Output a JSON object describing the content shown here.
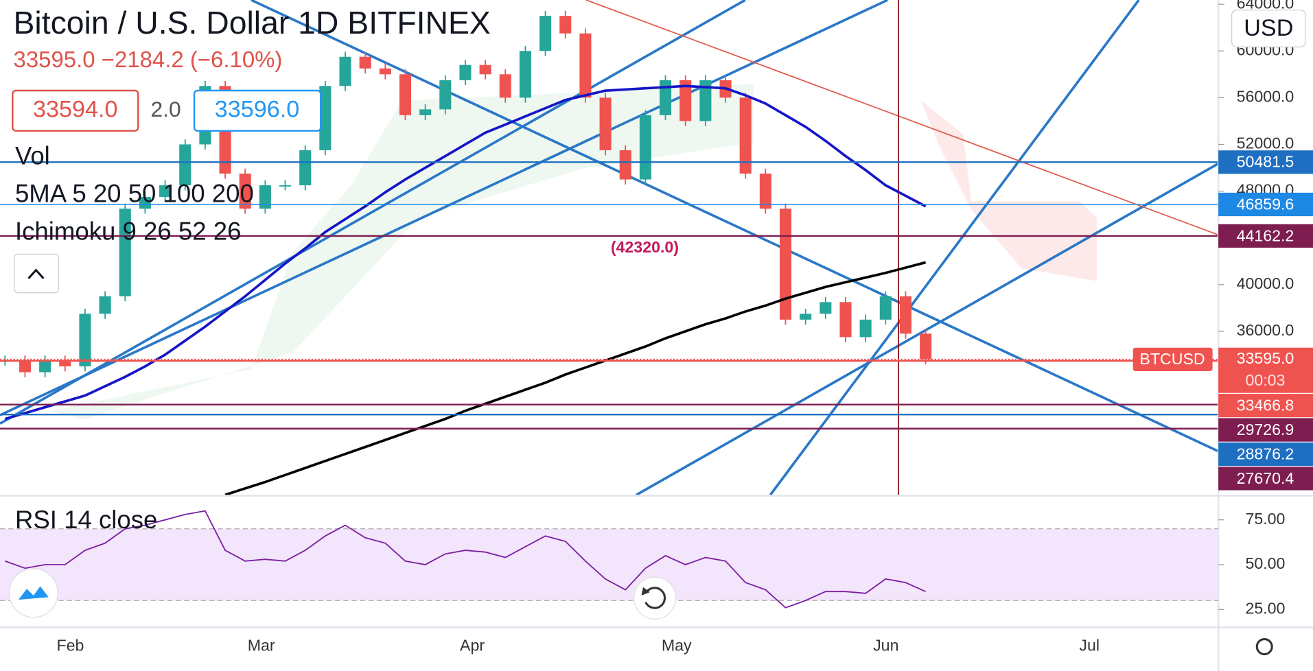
{
  "header": {
    "title": "Bitcoin / U.S. Dollar  1D  BITFINEX",
    "quote": "33595.0 −2184.2 (−6.10%)",
    "bid": "33594.0",
    "spread": "2.0",
    "ask": "33596.0",
    "currency": "USD"
  },
  "indicators": {
    "volume": "Vol",
    "ma": "5MA 5 20 50 100 200",
    "ichimoku": "Ichimoku 9 26 52 26",
    "rsi": "RSI 14 close"
  },
  "annotation": "(42320.0)",
  "chart_data": {
    "type": "candlestick",
    "x_labels": [
      "Feb",
      "Mar",
      "Apr",
      "May",
      "Jun",
      "Jul"
    ],
    "closes": [
      33500,
      32500,
      33500,
      33000,
      37500,
      39000,
      46500,
      47500,
      48500,
      52000,
      57000,
      49500,
      46500,
      48500,
      48500,
      51500,
      57000,
      59500,
      58500,
      58000,
      54500,
      55000,
      57500,
      58800,
      58000,
      56000,
      60000,
      63000,
      61500,
      56000,
      51500,
      49000,
      54500,
      57500,
      54000,
      57500,
      56000,
      49500,
      46500,
      37000,
      37500,
      38500,
      35500,
      37000,
      39000,
      35800,
      33595
    ],
    "up_color": "#26a69a",
    "down_color": "#ef5350",
    "ma50": {
      "color": "#1515c8",
      "values": [
        28500,
        29000,
        29500,
        30000,
        30500,
        31300,
        32100,
        33000,
        34000,
        35200,
        36400,
        37700,
        39000,
        40400,
        41800,
        43100,
        44500,
        45600,
        46700,
        47900,
        49000,
        50000,
        51000,
        52000,
        53000,
        53700,
        54400,
        55100,
        55800,
        56200,
        56600,
        56700,
        56800,
        56900,
        57000,
        56900,
        56800,
        56200,
        55500,
        54500,
        53500,
        52300,
        51000,
        49800,
        48500,
        47600,
        46700
      ]
    },
    "ma200": {
      "color": "#000000",
      "values": [
        null,
        null,
        null,
        null,
        null,
        null,
        null,
        null,
        null,
        null,
        null,
        22000,
        22550,
        23100,
        23700,
        24300,
        24900,
        25500,
        26100,
        26700,
        27300,
        27900,
        28500,
        29200,
        29800,
        30400,
        31000,
        31600,
        32300,
        32900,
        33500,
        34100,
        34700,
        35400,
        36000,
        36600,
        37100,
        37700,
        38200,
        38800,
        39300,
        39800,
        40200,
        40600,
        41000,
        41450,
        41900
      ]
    },
    "ylim": [
      22000,
      64360
    ],
    "yticks": [
      {
        "value": 36000,
        "label": "36000.0"
      },
      {
        "value": 40000,
        "label": "40000.0"
      },
      {
        "value": 44000,
        "label": "44000.0"
      },
      {
        "value": 48000,
        "label": "48000.0"
      },
      {
        "value": 52000,
        "label": "52000.0"
      },
      {
        "value": 56000,
        "label": "56000.0"
      },
      {
        "value": 60000,
        "label": "60000.0"
      },
      {
        "value": 64000,
        "label": "64000.0"
      }
    ],
    "last_price": {
      "symbol": "BTCUSD",
      "value": 33595,
      "label": "33595.0",
      "countdown": "00:03",
      "color": "#ef5350"
    },
    "levels": [
      {
        "value": 50481.5,
        "label": "50481.5",
        "color": "#1e6fc2"
      },
      {
        "value": 46859.6,
        "label": "46859.6",
        "color": "#1e88e5"
      },
      {
        "value": 44162.2,
        "label": "44162.2",
        "color": "#7e1d50"
      },
      {
        "value": 33466.8,
        "label": "33466.8",
        "color": "#ef5350"
      },
      {
        "value": 29726.9,
        "label": "29726.9",
        "color": "#7e1d50"
      },
      {
        "value": 28876.2,
        "label": "28876.2",
        "color": "#1e6fc2"
      },
      {
        "value": 27670.4,
        "label": "27670.4",
        "color": "#7e1d50"
      }
    ],
    "rsi": {
      "color": "#7b1fa2",
      "values": [
        52,
        48,
        50,
        50,
        58,
        62,
        70,
        72,
        75,
        78,
        80,
        58,
        52,
        53,
        52,
        58,
        66,
        72,
        65,
        62,
        52,
        50,
        56,
        58,
        57,
        54,
        60,
        66,
        63,
        52,
        42,
        36,
        48,
        55,
        50,
        54,
        52,
        40,
        36,
        26,
        30,
        35,
        35,
        34,
        42,
        40,
        35
      ],
      "ylim": [
        15,
        88
      ],
      "yticks": [
        {
          "value": 25,
          "label": "25.00"
        },
        {
          "value": 50,
          "label": "50.00"
        },
        {
          "value": 75,
          "label": "75.00"
        }
      ],
      "band": [
        30,
        70
      ],
      "band_color": "#f3e5fb"
    }
  }
}
